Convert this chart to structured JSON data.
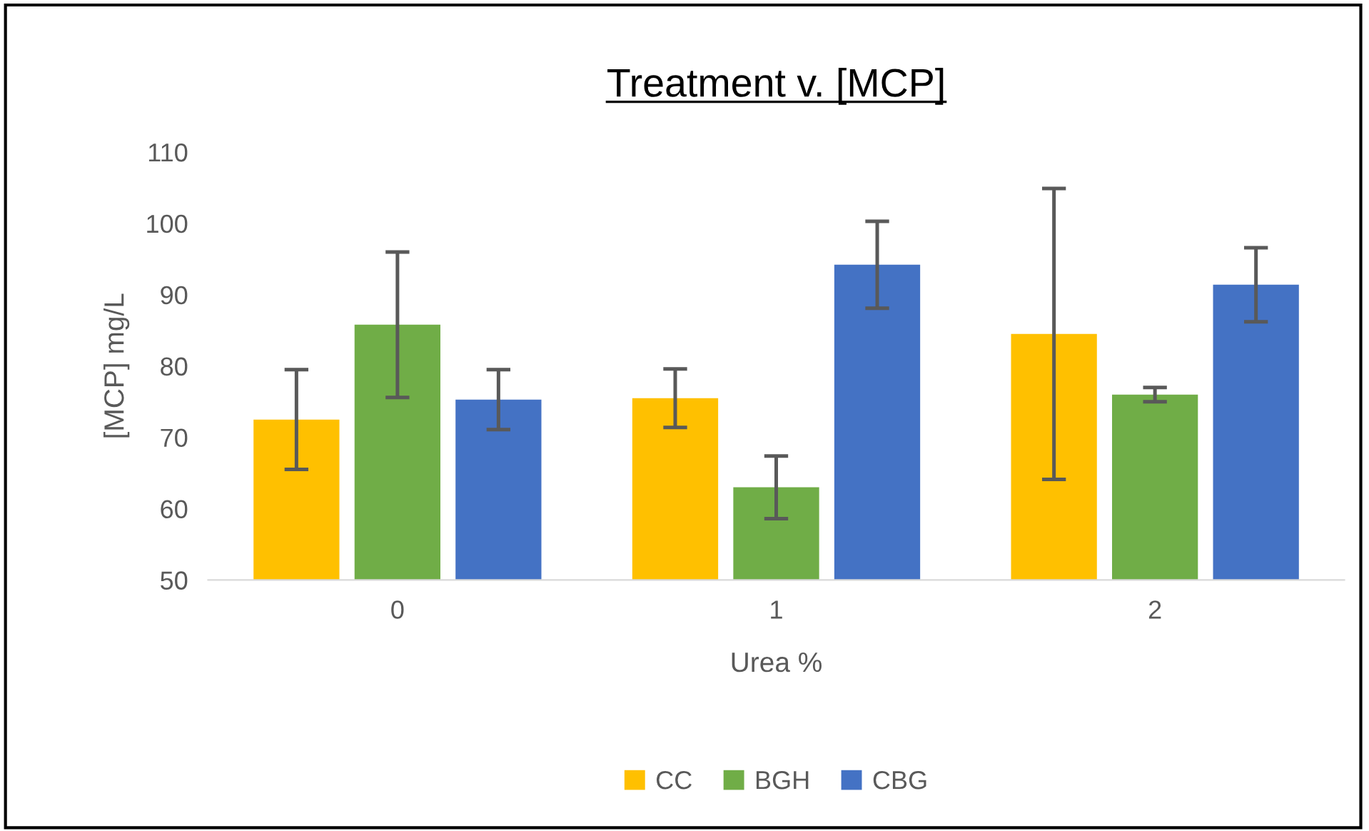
{
  "chart_data": {
    "type": "bar",
    "title": "Treatment v. [MCP]",
    "xlabel": "Urea %",
    "ylabel": "[MCP] mg/L",
    "categories": [
      "0",
      "1",
      "2"
    ],
    "series": [
      {
        "name": "CC",
        "color": "#ffc000",
        "values": [
          72.5,
          75.5,
          84.5
        ],
        "errors": [
          7,
          4.1,
          20.4
        ]
      },
      {
        "name": "BGH",
        "color": "#70ad47",
        "values": [
          85.8,
          63,
          76
        ],
        "errors": [
          10.2,
          4.4,
          1
        ]
      },
      {
        "name": "CBG",
        "color": "#4472c4",
        "values": [
          75.3,
          94.2,
          91.4
        ],
        "errors": [
          4.2,
          6.1,
          5.2
        ]
      }
    ],
    "ylim": [
      50,
      110
    ],
    "yticks": [
      50,
      60,
      70,
      80,
      90,
      100,
      110
    ],
    "grid": false,
    "legend": "bottom"
  }
}
